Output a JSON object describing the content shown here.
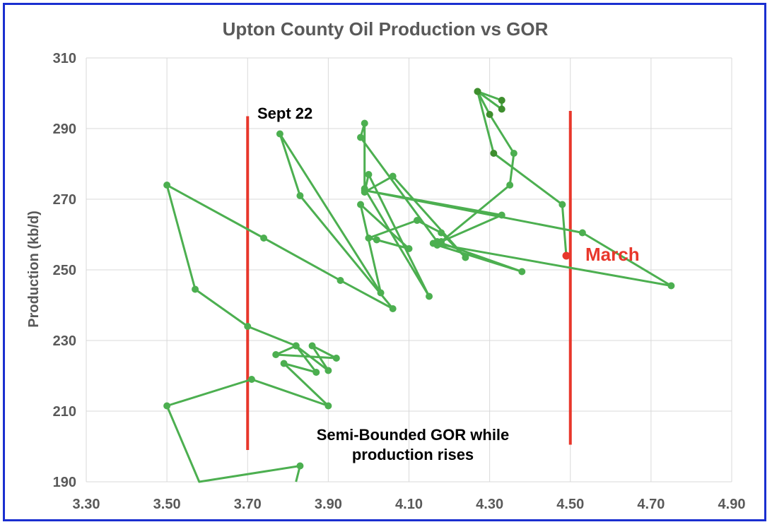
{
  "chart_data": {
    "type": "scatter",
    "title": "Upton County Oil Production vs GOR",
    "xlabel": "",
    "ylabel": "Production (kb/d)",
    "xlim": [
      3.3,
      4.9
    ],
    "ylim": [
      190,
      310
    ],
    "x_ticks": [
      "3.30",
      "3.50",
      "3.70",
      "3.90",
      "4.10",
      "4.30",
      "4.50",
      "4.70",
      "4.90"
    ],
    "y_ticks": [
      "190",
      "210",
      "230",
      "250",
      "270",
      "290",
      "310"
    ],
    "grid": true,
    "colors": {
      "series": "#4caf50",
      "series_dark": "#3e8e2e",
      "highlight": "#e8372b",
      "vlines": "#e8372b"
    },
    "series": [
      {
        "points": [
          [
            3.82,
            188.0
          ],
          [
            3.83,
            194.5
          ],
          [
            3.58,
            188.0
          ],
          [
            3.5,
            211.5
          ],
          [
            3.71,
            219.0
          ],
          [
            3.9,
            211.5
          ],
          [
            3.79,
            223.5
          ],
          [
            3.87,
            221.0
          ],
          [
            3.82,
            228.5
          ],
          [
            3.9,
            221.5
          ],
          [
            3.86,
            228.5
          ],
          [
            3.92,
            225.0
          ],
          [
            3.77,
            226.0
          ],
          [
            3.82,
            228.5
          ],
          [
            3.7,
            234.0
          ],
          [
            3.57,
            244.5
          ],
          [
            3.5,
            274.0
          ],
          [
            3.74,
            259.0
          ],
          [
            3.93,
            247.0
          ],
          [
            4.06,
            239.0
          ],
          [
            3.83,
            271.0
          ],
          [
            3.78,
            288.5
          ],
          [
            4.03,
            243.5
          ],
          [
            3.98,
            268.5
          ],
          [
            4.1,
            256.0
          ],
          [
            4.02,
            258.5
          ],
          [
            4.0,
            259.0
          ],
          [
            4.12,
            264.0
          ],
          [
            4.18,
            260.5
          ],
          [
            4.24,
            253.5
          ],
          [
            4.06,
            276.5
          ],
          [
            3.99,
            272.0
          ],
          [
            4.0,
            277.0
          ],
          [
            4.15,
            242.5
          ],
          [
            3.99,
            273.0
          ],
          [
            3.99,
            291.5
          ],
          [
            3.98,
            287.5
          ],
          [
            4.17,
            258.0
          ],
          [
            4.38,
            249.5
          ],
          [
            4.17,
            257.0
          ],
          [
            4.16,
            257.5
          ],
          [
            4.75,
            245.5
          ],
          [
            4.53,
            260.5
          ],
          [
            3.99,
            272.5
          ],
          [
            4.33,
            265.5
          ],
          [
            4.18,
            258.0
          ],
          [
            4.35,
            274.0
          ],
          [
            4.36,
            283.0
          ],
          [
            4.3,
            294.0
          ],
          [
            4.27,
            300.5
          ],
          [
            4.33,
            298.0
          ],
          [
            4.33,
            295.5
          ],
          [
            4.27,
            300.5
          ],
          [
            4.31,
            283.0
          ],
          [
            4.48,
            268.5
          ],
          [
            4.49,
            254.0
          ]
        ]
      }
    ],
    "highlight_point": [
      4.49,
      254.0
    ],
    "vertical_lines": [
      {
        "x": 3.7,
        "y_from": 199,
        "y_to": 293.5
      },
      {
        "x": 4.5,
        "y_from": 200.5,
        "y_to": 295
      }
    ],
    "annotations": {
      "sept": "Sept 22",
      "march": "March",
      "semi_line1": "Semi-Bounded GOR while",
      "semi_line2": "production rises"
    }
  }
}
